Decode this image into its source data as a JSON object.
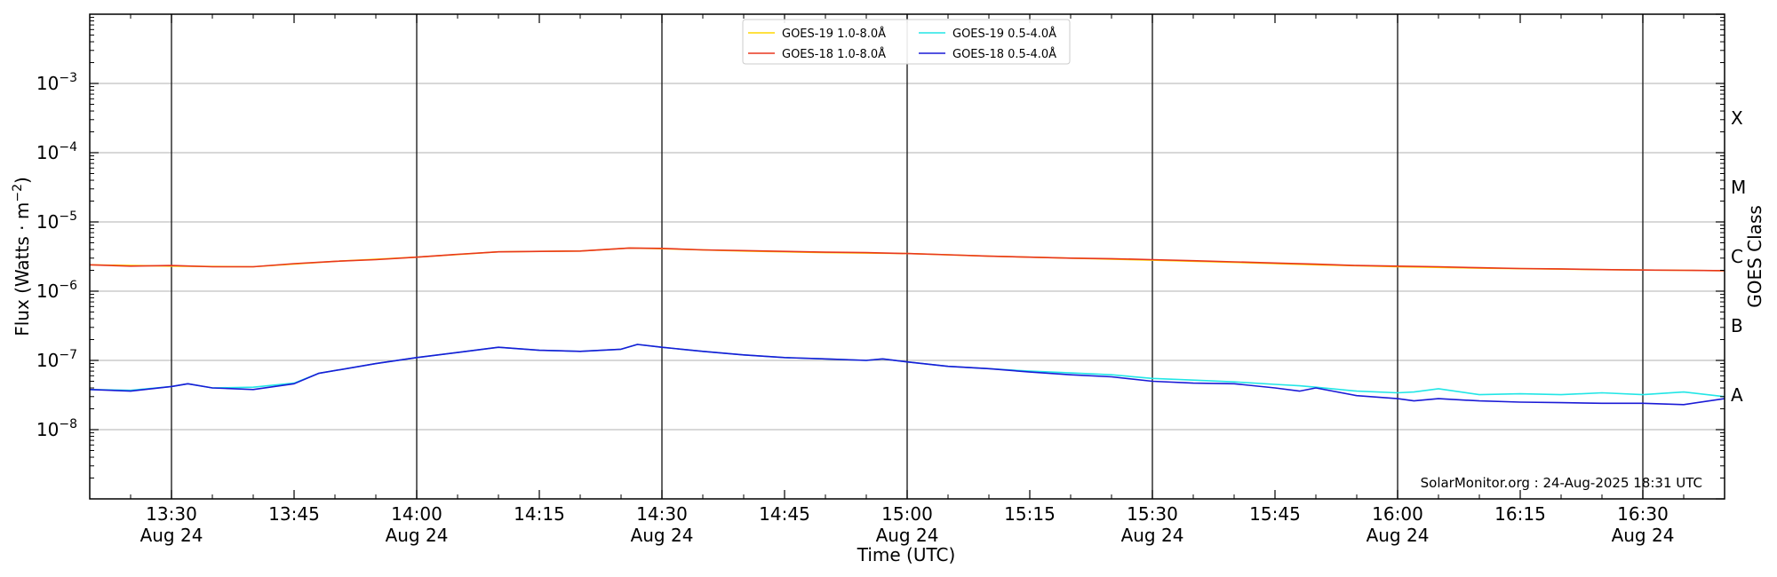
{
  "chart_data": {
    "type": "line",
    "title": "",
    "xlabel": "Time (UTC)",
    "ylabel": "Flux (Watts · m",
    "ylabel_exponent": "−2",
    "ylabel_close": ")",
    "y2label": "GOES Class",
    "credit": "SolarMonitor.org : 24-Aug-2025 18:31 UTC",
    "y_scale": "log",
    "ylim": [
      1e-09,
      0.01
    ],
    "xlim": [
      "13:20",
      "16:40"
    ],
    "grid": "horizontal at decades",
    "legend_position": "top-center",
    "y_ticks": [
      {
        "value": -8,
        "base": "10",
        "exp": "−8"
      },
      {
        "value": -7,
        "base": "10",
        "exp": "−7"
      },
      {
        "value": -6,
        "base": "10",
        "exp": "−6"
      },
      {
        "value": -5,
        "base": "10",
        "exp": "−5"
      },
      {
        "value": -4,
        "base": "10",
        "exp": "−4"
      },
      {
        "value": -3,
        "base": "10",
        "exp": "−3"
      }
    ],
    "goes_classes": [
      {
        "label": "A",
        "value": -7.5
      },
      {
        "label": "B",
        "value": -6.5
      },
      {
        "label": "C",
        "value": -5.5
      },
      {
        "label": "M",
        "value": -4.5
      },
      {
        "label": "X",
        "value": -3.5
      }
    ],
    "x_major_ticks": [
      {
        "time": "13:30",
        "label": "13:30",
        "date": "Aug 24"
      },
      {
        "time": "13:45",
        "label": "13:45",
        "date": ""
      },
      {
        "time": "14:00",
        "label": "14:00",
        "date": "Aug 24"
      },
      {
        "time": "14:15",
        "label": "14:15",
        "date": ""
      },
      {
        "time": "14:30",
        "label": "14:30",
        "date": "Aug 24"
      },
      {
        "time": "14:45",
        "label": "14:45",
        "date": ""
      },
      {
        "time": "15:00",
        "label": "15:00",
        "date": "Aug 24"
      },
      {
        "time": "15:15",
        "label": "15:15",
        "date": ""
      },
      {
        "time": "15:30",
        "label": "15:30",
        "date": "Aug 24"
      },
      {
        "time": "15:45",
        "label": "15:45",
        "date": ""
      },
      {
        "time": "16:00",
        "label": "16:00",
        "date": "Aug 24"
      },
      {
        "time": "16:15",
        "label": "16:15",
        "date": ""
      },
      {
        "time": "16:30",
        "label": "16:30",
        "date": "Aug 24"
      }
    ],
    "vertical_lines": [
      "13:30",
      "14:00",
      "14:30",
      "15:00",
      "15:30",
      "16:00",
      "16:30"
    ],
    "series": [
      {
        "name": "GOES-19 1.0-8.0Å",
        "color": "#ffd700",
        "x": [
          "13:20",
          "13:30",
          "13:40",
          "13:50",
          "14:00",
          "14:10",
          "14:20",
          "14:26",
          "14:30",
          "14:40",
          "14:50",
          "15:00",
          "15:10",
          "15:20",
          "15:30",
          "15:40",
          "15:50",
          "16:00",
          "16:10",
          "16:20",
          "16:30",
          "16:40"
        ],
        "y": [
          2.4e-06,
          2.3e-06,
          2.25e-06,
          2.7e-06,
          3.1e-06,
          3.7e-06,
          3.8e-06,
          4.2e-06,
          4.1e-06,
          3.8e-06,
          3.6e-06,
          3.5e-06,
          3.2e-06,
          3e-06,
          2.8e-06,
          2.6e-06,
          2.4e-06,
          2.25e-06,
          2.15e-06,
          2.08e-06,
          2.02e-06,
          1.98e-06
        ]
      },
      {
        "name": "GOES-18 1.0-8.0Å",
        "color": "#e8371f",
        "x": [
          "13:20",
          "13:25",
          "13:30",
          "13:35",
          "13:40",
          "13:45",
          "13:50",
          "13:55",
          "14:00",
          "14:05",
          "14:10",
          "14:15",
          "14:20",
          "14:26",
          "14:30",
          "14:35",
          "14:40",
          "14:45",
          "14:50",
          "14:55",
          "15:00",
          "15:05",
          "15:10",
          "15:15",
          "15:20",
          "15:25",
          "15:30",
          "15:35",
          "15:40",
          "15:45",
          "15:50",
          "15:55",
          "16:00",
          "16:05",
          "16:10",
          "16:15",
          "16:20",
          "16:25",
          "16:30",
          "16:35",
          "16:40"
        ],
        "y": [
          2.4e-06,
          2.3e-06,
          2.35e-06,
          2.25e-06,
          2.25e-06,
          2.5e-06,
          2.7e-06,
          2.85e-06,
          3.1e-06,
          3.4e-06,
          3.7e-06,
          3.75e-06,
          3.8e-06,
          4.2e-06,
          4.15e-06,
          3.95e-06,
          3.85e-06,
          3.75e-06,
          3.65e-06,
          3.6e-06,
          3.5e-06,
          3.35e-06,
          3.2e-06,
          3.1e-06,
          3e-06,
          2.95e-06,
          2.85e-06,
          2.75e-06,
          2.65e-06,
          2.55e-06,
          2.45e-06,
          2.35e-06,
          2.3e-06,
          2.25e-06,
          2.18e-06,
          2.12e-06,
          2.1e-06,
          2.05e-06,
          2.02e-06,
          2e-06,
          1.98e-06
        ]
      },
      {
        "name": "GOES-19 0.5-4.0Å",
        "color": "#22e6e6",
        "x": [
          "13:20",
          "13:25",
          "13:30",
          "13:32",
          "13:35",
          "13:40",
          "13:45",
          "13:48",
          "13:55",
          "14:00",
          "14:05",
          "14:10",
          "14:15",
          "14:20",
          "14:25",
          "14:27",
          "14:30",
          "14:35",
          "14:40",
          "14:45",
          "14:50",
          "14:55",
          "14:57",
          "15:00",
          "15:05",
          "15:10",
          "15:15",
          "15:20",
          "15:25",
          "15:30",
          "15:35",
          "15:40",
          "15:45",
          "15:48",
          "15:50",
          "15:55",
          "16:00",
          "16:02",
          "16:05",
          "16:10",
          "16:15",
          "16:20",
          "16:25",
          "16:30",
          "16:35",
          "16:40"
        ],
        "y": [
          3.8e-08,
          3.7e-08,
          4.2e-08,
          4.6e-08,
          4e-08,
          4.1e-08,
          4.7e-08,
          6.5e-08,
          9e-08,
          1.1e-07,
          1.3e-07,
          1.55e-07,
          1.4e-07,
          1.35e-07,
          1.45e-07,
          1.7e-07,
          1.55e-07,
          1.35e-07,
          1.2e-07,
          1.1e-07,
          1.05e-07,
          1e-07,
          1.05e-07,
          9.5e-08,
          8.2e-08,
          7.6e-08,
          7e-08,
          6.6e-08,
          6.2e-08,
          5.5e-08,
          5.2e-08,
          4.9e-08,
          4.5e-08,
          4.3e-08,
          4.1e-08,
          3.6e-08,
          3.4e-08,
          3.5e-08,
          3.9e-08,
          3.2e-08,
          3.3e-08,
          3.2e-08,
          3.4e-08,
          3.2e-08,
          3.5e-08,
          3e-08
        ]
      },
      {
        "name": "GOES-18 0.5-4.0Å",
        "color": "#1a1ad6",
        "x": [
          "13:20",
          "13:25",
          "13:30",
          "13:32",
          "13:35",
          "13:40",
          "13:45",
          "13:48",
          "13:55",
          "14:00",
          "14:05",
          "14:10",
          "14:15",
          "14:20",
          "14:25",
          "14:27",
          "14:30",
          "14:35",
          "14:40",
          "14:45",
          "14:50",
          "14:55",
          "14:57",
          "15:00",
          "15:05",
          "15:10",
          "15:15",
          "15:20",
          "15:25",
          "15:30",
          "15:35",
          "15:40",
          "15:45",
          "15:48",
          "15:50",
          "15:55",
          "16:00",
          "16:02",
          "16:05",
          "16:10",
          "16:15",
          "16:20",
          "16:25",
          "16:30",
          "16:35",
          "16:40"
        ],
        "y": [
          3.8e-08,
          3.6e-08,
          4.2e-08,
          4.6e-08,
          4e-08,
          3.8e-08,
          4.6e-08,
          6.5e-08,
          9e-08,
          1.1e-07,
          1.3e-07,
          1.55e-07,
          1.4e-07,
          1.35e-07,
          1.45e-07,
          1.7e-07,
          1.55e-07,
          1.35e-07,
          1.2e-07,
          1.1e-07,
          1.05e-07,
          1e-07,
          1.05e-07,
          9.5e-08,
          8.2e-08,
          7.6e-08,
          6.8e-08,
          6.2e-08,
          5.8e-08,
          5e-08,
          4.7e-08,
          4.6e-08,
          4e-08,
          3.6e-08,
          4e-08,
          3.1e-08,
          2.8e-08,
          2.6e-08,
          2.8e-08,
          2.6e-08,
          2.5e-08,
          2.45e-08,
          2.4e-08,
          2.4e-08,
          2.3e-08,
          2.8e-08
        ]
      }
    ]
  }
}
